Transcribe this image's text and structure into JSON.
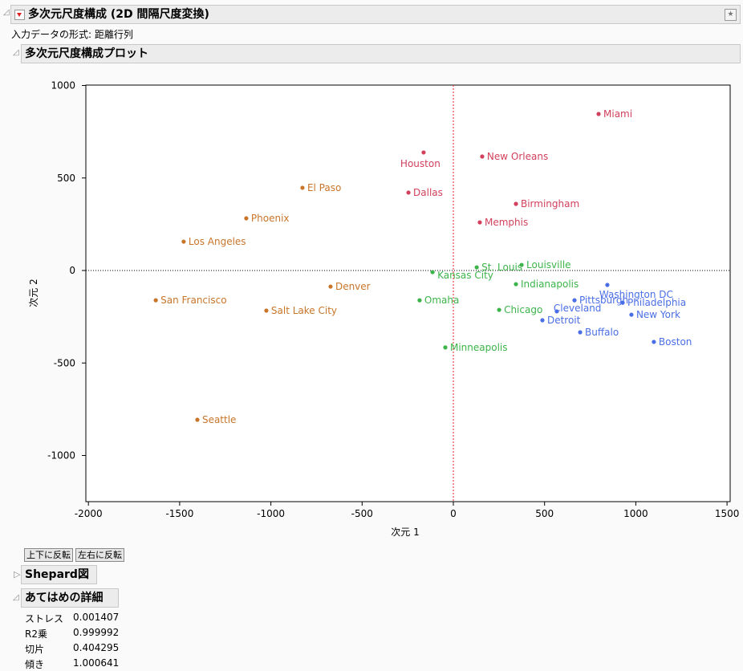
{
  "header": {
    "title": "多次元尺度構成 (2D 間隔尺度変換)",
    "input_format": "入力データの形式: 距離行列"
  },
  "plot_section": {
    "title": "多次元尺度構成プロット"
  },
  "buttons": {
    "flip_vertical": "上下に反転",
    "flip_horizontal": "左右に反転"
  },
  "shepard": {
    "title": "Shepard図"
  },
  "fit_details": {
    "title": "あてはめの詳細",
    "rows": [
      {
        "label": "ストレス",
        "value": "0.001407"
      },
      {
        "label": "R2乗",
        "value": "0.999992"
      },
      {
        "label": "切片",
        "value": "0.404295"
      },
      {
        "label": "傾き",
        "value": "1.000641"
      }
    ]
  },
  "colors": {
    "red": "#d2405c",
    "orange": "#c8752a",
    "green": "#3cb44a",
    "blue": "#4a6ee6"
  },
  "chart_data": {
    "type": "scatter",
    "xlabel": "次元 1",
    "ylabel": "次元 2",
    "xlim": [
      -2000,
      1500
    ],
    "ylim": [
      -1250,
      1000
    ],
    "xticks": [
      "-2000",
      "-1500",
      "-1000",
      "-500",
      "0",
      "500",
      "1000",
      "1500"
    ],
    "yticks": [
      "1000",
      "500",
      "0",
      "-500",
      "-1000"
    ],
    "reference_lines": {
      "x0": "red dashed",
      "y0": "black dotted"
    },
    "points": [
      {
        "label": "Miami",
        "x": 796,
        "y": 846,
        "group": "red"
      },
      {
        "label": "Houston",
        "x": -163,
        "y": 638,
        "group": "red"
      },
      {
        "label": "New Orleans",
        "x": 158,
        "y": 616,
        "group": "red"
      },
      {
        "label": "Dallas",
        "x": -246,
        "y": 421,
        "group": "red"
      },
      {
        "label": "Birmingham",
        "x": 343,
        "y": 360,
        "group": "red"
      },
      {
        "label": "Memphis",
        "x": 145,
        "y": 260,
        "group": "red"
      },
      {
        "label": "El Paso",
        "x": -827,
        "y": 447,
        "group": "orange"
      },
      {
        "label": "Phoenix",
        "x": -1135,
        "y": 282,
        "group": "orange"
      },
      {
        "label": "Los Angeles",
        "x": -1478,
        "y": 156,
        "group": "orange"
      },
      {
        "label": "Denver",
        "x": -673,
        "y": -87,
        "group": "orange"
      },
      {
        "label": "San Francisco",
        "x": -1631,
        "y": -161,
        "group": "orange"
      },
      {
        "label": "Salt Lake City",
        "x": -1025,
        "y": -217,
        "group": "orange"
      },
      {
        "label": "Seattle",
        "x": -1403,
        "y": -807,
        "group": "orange"
      },
      {
        "label": "St. Louis",
        "x": 128,
        "y": 17,
        "group": "green"
      },
      {
        "label": "Louisville",
        "x": 374,
        "y": 30,
        "group": "green"
      },
      {
        "label": "Kansas City",
        "x": -114,
        "y": -9,
        "group": "green"
      },
      {
        "label": "Indianapolis",
        "x": 343,
        "y": -74,
        "group": "green"
      },
      {
        "label": "Omaha",
        "x": -185,
        "y": -161,
        "group": "green"
      },
      {
        "label": "Chicago",
        "x": 251,
        "y": -213,
        "group": "green"
      },
      {
        "label": "Minneapolis",
        "x": -44,
        "y": -416,
        "group": "green"
      },
      {
        "label": "Washington DC",
        "x": 844,
        "y": -78,
        "group": "blue"
      },
      {
        "label": "Cleveland",
        "x": 567,
        "y": -221,
        "group": "blue"
      },
      {
        "label": "Pittsburgh",
        "x": 664,
        "y": -161,
        "group": "blue"
      },
      {
        "label": "Philadelphia",
        "x": 928,
        "y": -174,
        "group": "blue"
      },
      {
        "label": "Detroit",
        "x": 488,
        "y": -269,
        "group": "blue"
      },
      {
        "label": "New York",
        "x": 976,
        "y": -239,
        "group": "blue"
      },
      {
        "label": "Buffalo",
        "x": 695,
        "y": -334,
        "group": "blue"
      },
      {
        "label": "Boston",
        "x": 1099,
        "y": -386,
        "group": "blue"
      }
    ]
  }
}
